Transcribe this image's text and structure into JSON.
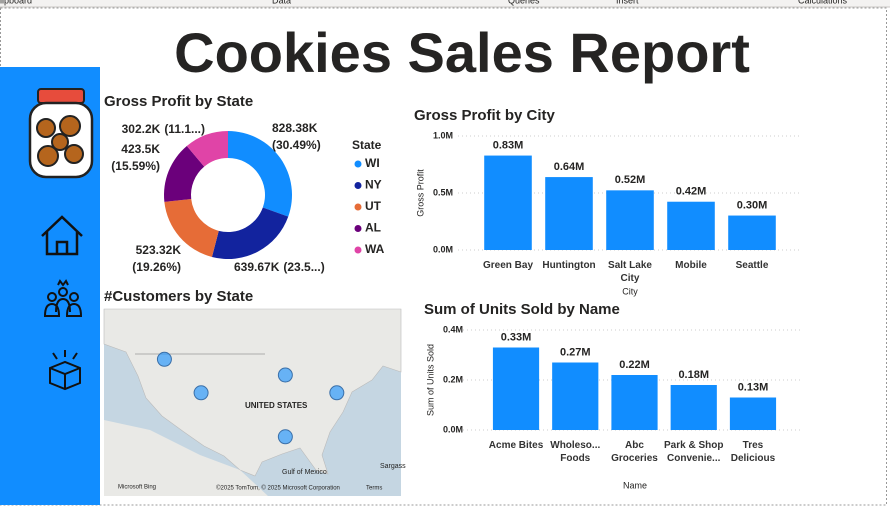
{
  "ribbon": [
    "lipboard",
    "Data",
    "Queries",
    "Insert",
    "Calculations"
  ],
  "report_title": "Cookies Sales Report",
  "chart_data": [
    {
      "type": "donut",
      "title": "Gross Profit by State",
      "legend_title": "State",
      "categories": [
        "WI",
        "NY",
        "UT",
        "AL",
        "WA"
      ],
      "values": [
        828380,
        639670,
        523320,
        423500,
        302200
      ],
      "value_labels": [
        "828.38K",
        "639.67K",
        "523.32K",
        "423.5K",
        "302.2K"
      ],
      "share_labels": [
        "(30.49%)",
        "(23.5...)",
        "(19.26%)",
        "(15.59%)",
        "(11.1...)"
      ],
      "colors": [
        "#118DFF",
        "#12239E",
        "#E66C37",
        "#6B007B",
        "#E044A7"
      ]
    },
    {
      "type": "bar",
      "title": "Gross Profit by City",
      "x_label": "City",
      "y_label": "Gross Profit",
      "categories": [
        "Green Bay",
        "Huntington",
        "Salt Lake City",
        "Mobile",
        "Seattle"
      ],
      "values": [
        828380,
        639670,
        523320,
        423500,
        302200
      ],
      "value_labels": [
        "0.83M",
        "0.64M",
        "0.52M",
        "0.42M",
        "0.30M"
      ],
      "color": "#118DFF",
      "ylim": [
        0,
        1000000
      ],
      "yticks": [
        {
          "value": 0,
          "label": "0.0M"
        },
        {
          "value": 500000,
          "label": "0.5M"
        },
        {
          "value": 1000000,
          "label": "1.0M"
        }
      ],
      "grid": true
    },
    {
      "type": "map",
      "title": "#Customers by State",
      "lat": [
        47.6,
        44.5,
        40.8,
        40.8,
        30.7
      ],
      "lon": [
        -122.3,
        -88.0,
        -73.4,
        -111.9,
        -88.0
      ],
      "color": "#118DFF",
      "labels": [
        "UNITED STATES",
        "Gulf of Mexico",
        "Sargass",
        "Microsoft Bing",
        "©2025 TomTom, © 2025 Microsoft Corporation",
        "Terms"
      ]
    },
    {
      "type": "bar",
      "title": "Sum of Units Sold by Name",
      "x_label": "Name",
      "y_label": "Sum of Units Sold",
      "categories": [
        "Acme Bites",
        "Wholeso... Foods",
        "Abc Groceries",
        "Park & Shop Convenie...",
        "Tres Delicious"
      ],
      "values": [
        330000,
        270000,
        220000,
        180000,
        130000
      ],
      "value_labels": [
        "0.33M",
        "0.27M",
        "0.22M",
        "0.18M",
        "0.13M"
      ],
      "color": "#118DFF",
      "ylim": [
        0,
        400000
      ],
      "yticks": [
        {
          "value": 0,
          "label": "0.0M"
        },
        {
          "value": 200000,
          "label": "0.2M"
        },
        {
          "value": 400000,
          "label": "0.4M"
        }
      ],
      "grid": true
    }
  ]
}
